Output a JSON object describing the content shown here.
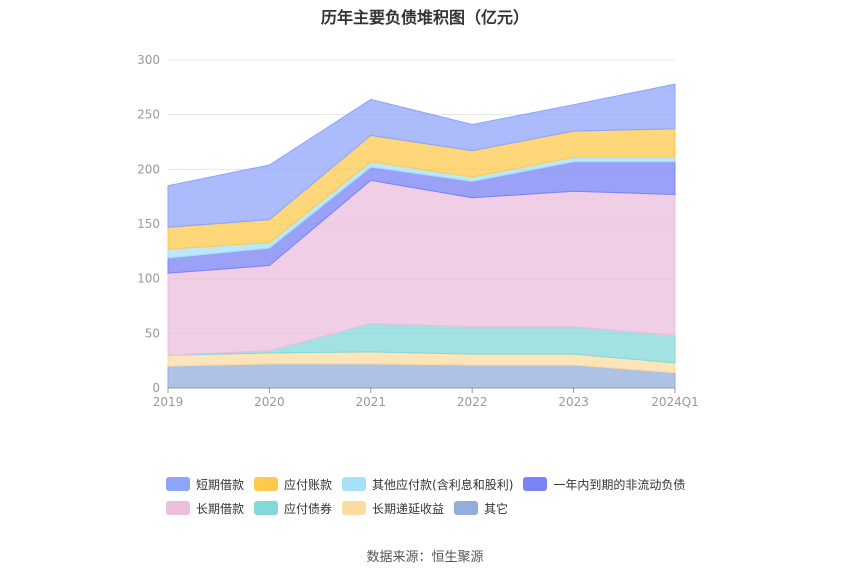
{
  "title": "历年主要负债堆积图（亿元）",
  "source": "数据来源：恒生聚源",
  "chart_data": {
    "type": "area",
    "stacked": true,
    "categories": [
      "2019",
      "2020",
      "2021",
      "2022",
      "2023",
      "2024Q1"
    ],
    "ylim": [
      0,
      300
    ],
    "yticks": [
      0,
      50,
      100,
      150,
      200,
      250,
      300
    ],
    "grid": true,
    "legend_position": "bottom",
    "series": [
      {
        "name": "其它",
        "color": "#92aedc",
        "values": [
          20,
          22,
          22,
          21,
          21,
          14
        ]
      },
      {
        "name": "长期递延收益",
        "color": "#fddba2",
        "values": [
          10,
          10,
          11,
          10,
          10,
          9
        ]
      },
      {
        "name": "应付债券",
        "color": "#84d8d8",
        "values": [
          0,
          2,
          26,
          25,
          25,
          25
        ]
      },
      {
        "name": "长期借款",
        "color": "#ebbede",
        "values": [
          75,
          78,
          131,
          118,
          124,
          129
        ]
      },
      {
        "name": "一年内到期的非流动负债",
        "color": "#7b82f6",
        "values": [
          14,
          16,
          12,
          15,
          27,
          30
        ]
      },
      {
        "name": "其他应付款(含利息和股利)",
        "color": "#a6e0f9",
        "values": [
          8,
          5,
          5,
          4,
          4,
          4
        ]
      },
      {
        "name": "应付账款",
        "color": "#fdca4d",
        "values": [
          20,
          21,
          24,
          24,
          24,
          26
        ]
      },
      {
        "name": "短期借款",
        "color": "#8fa4fb",
        "values": [
          38,
          50,
          33,
          24,
          24,
          41
        ]
      }
    ]
  },
  "legend": {
    "rows": [
      [
        "短期借款",
        "应付账款",
        "其他应付款(含利息和股利)",
        "一年内到期的非流动负债"
      ],
      [
        "长期借款",
        "应付债券",
        "长期递延收益",
        "其它"
      ]
    ]
  }
}
